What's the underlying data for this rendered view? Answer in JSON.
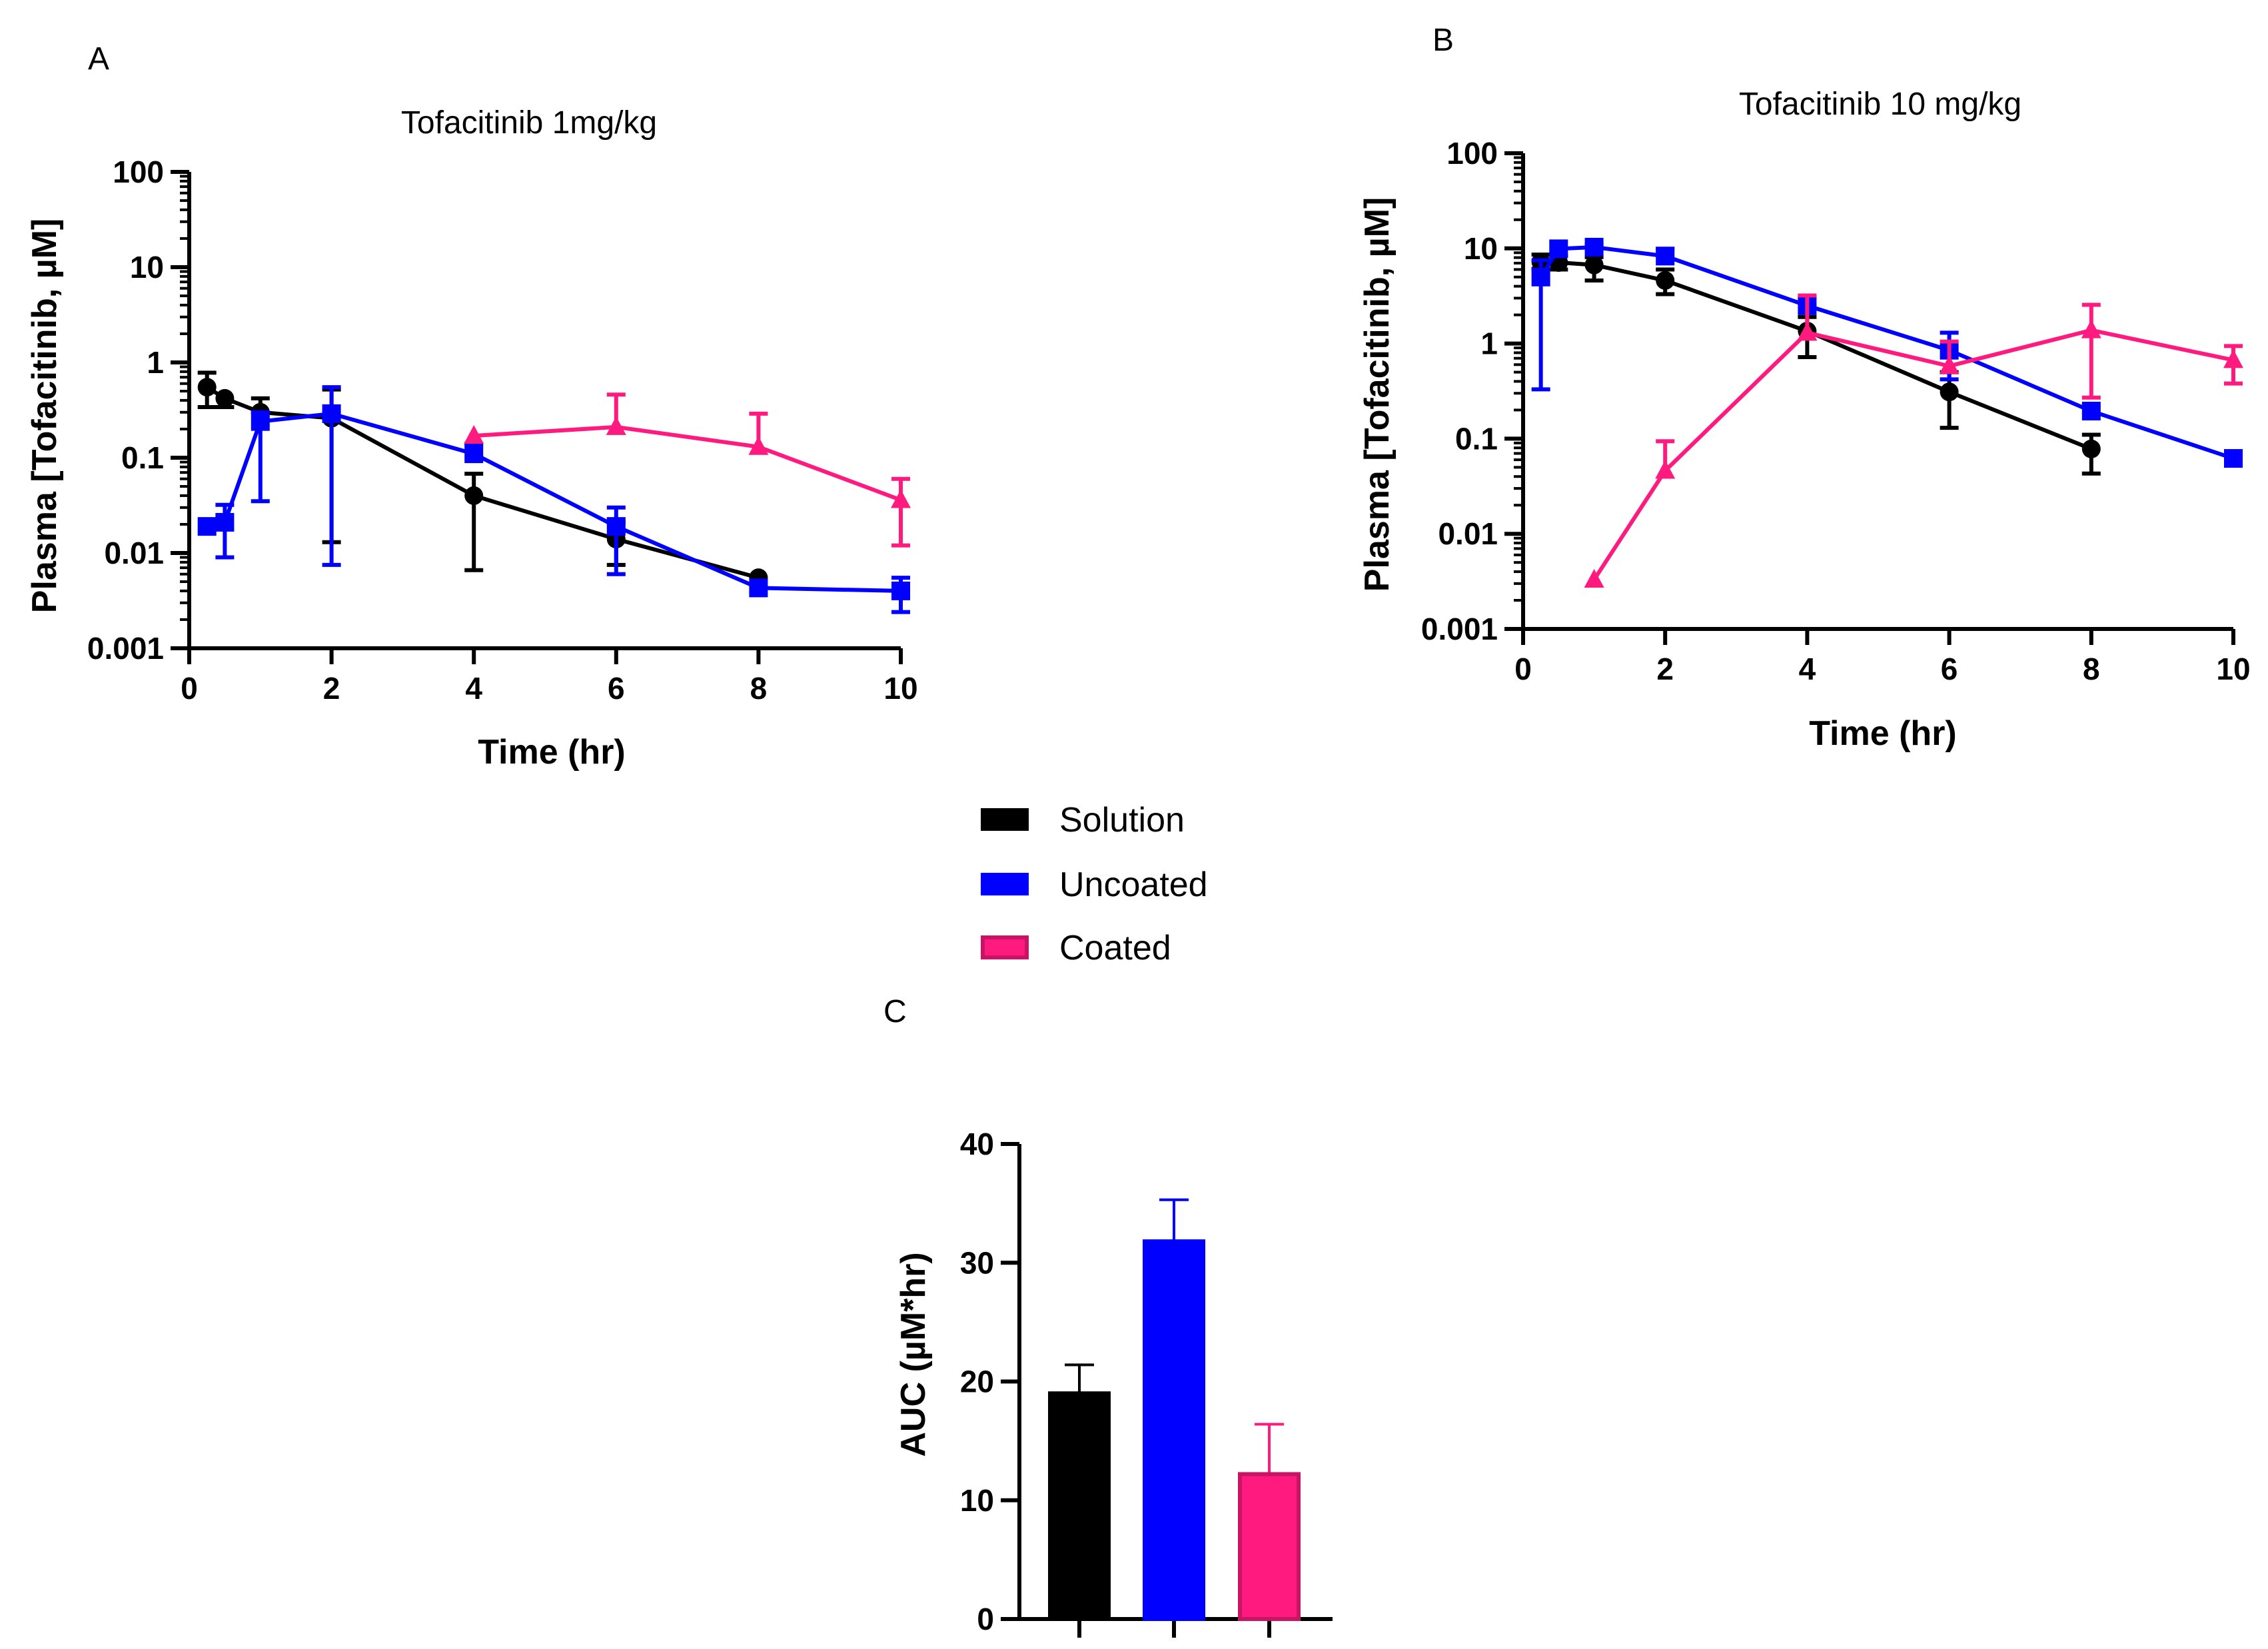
{
  "panel_labels": {
    "A": "A",
    "B": "B",
    "C": "C"
  },
  "legend": {
    "items": [
      {
        "label": "Solution",
        "color": "#000000"
      },
      {
        "label": "Uncoated",
        "color": "#0000ff"
      },
      {
        "label": "Coated",
        "color": "#ff1a7f"
      }
    ]
  },
  "chart_data": [
    {
      "id": "A",
      "type": "line",
      "scale": "log",
      "title": "Tofacitinib 1mg/kg",
      "xlabel": "Time (hr)",
      "ylabel": "Plasma [Tofacitinib, µM]",
      "xlim": [
        0,
        10
      ],
      "ylim": [
        0.001,
        100
      ],
      "xticks": [
        0,
        2,
        4,
        6,
        8,
        10
      ],
      "xtick_labels": [
        "0",
        "2",
        "4",
        "6",
        "8",
        "10"
      ],
      "yticks": [
        0.001,
        0.01,
        0.1,
        1,
        10,
        100
      ],
      "ytick_labels": [
        "0.001",
        "0.01",
        "0.1",
        "1",
        "10",
        "100"
      ],
      "series": [
        {
          "name": "Solution",
          "color": "#000000",
          "marker": "circle",
          "x": [
            0.25,
            0.5,
            1,
            2,
            4,
            6,
            8
          ],
          "y": [
            0.55,
            0.42,
            0.3,
            0.26,
            0.04,
            0.014,
            0.0055
          ],
          "err_hi": [
            0.78,
            null,
            0.42,
            0.52,
            0.068,
            0.021,
            null
          ],
          "err_lo": [
            0.34,
            0.34,
            null,
            0.013,
            0.0066,
            0.0075,
            null
          ]
        },
        {
          "name": "Uncoated",
          "color": "#0000ff",
          "marker": "square",
          "x": [
            0.25,
            0.5,
            1,
            2,
            4,
            6,
            8,
            10
          ],
          "y": [
            0.019,
            0.021,
            0.24,
            0.29,
            0.11,
            0.019,
            0.0043,
            0.004
          ],
          "err_hi": [
            null,
            0.032,
            0.3,
            0.55,
            0.14,
            0.03,
            null,
            0.0055
          ],
          "err_lo": [
            null,
            0.009,
            0.035,
            0.0075,
            null,
            0.006,
            null,
            0.0024
          ]
        },
        {
          "name": "Coated",
          "color": "#ff1a7f",
          "marker": "triangle",
          "x": [
            4,
            6,
            8,
            10
          ],
          "y": [
            0.17,
            0.21,
            0.13,
            0.036
          ],
          "err_hi": [
            null,
            0.46,
            0.29,
            0.06
          ],
          "err_lo": [
            null,
            null,
            null,
            0.012
          ]
        }
      ]
    },
    {
      "id": "B",
      "type": "line",
      "scale": "log",
      "title": "Tofacitinib 10 mg/kg",
      "xlabel": "Time (hr)",
      "ylabel": "Plasma [Tofacitinib, µM]",
      "xlim": [
        0,
        10
      ],
      "ylim": [
        0.001,
        100
      ],
      "xticks": [
        0,
        2,
        4,
        6,
        8,
        10
      ],
      "xtick_labels": [
        "0",
        "2",
        "4",
        "6",
        "8",
        "10"
      ],
      "yticks": [
        0.001,
        0.01,
        0.1,
        1,
        10,
        100
      ],
      "ytick_labels": [
        "0.001",
        "0.01",
        "0.1",
        "1",
        "10",
        "100"
      ],
      "series": [
        {
          "name": "Solution",
          "color": "#000000",
          "marker": "circle",
          "x": [
            0.25,
            0.5,
            1,
            2,
            4,
            6,
            8
          ],
          "y": [
            7.2,
            7.1,
            6.7,
            4.6,
            1.35,
            0.31,
            0.078
          ],
          "err_hi": [
            8.6,
            8.4,
            8.1,
            6.0,
            1.9,
            0.5,
            0.11
          ],
          "err_lo": [
            6.1,
            6.0,
            4.6,
            3.3,
            0.72,
            0.13,
            0.043
          ]
        },
        {
          "name": "Uncoated",
          "color": "#0000ff",
          "marker": "square",
          "x": [
            0.25,
            0.5,
            1,
            2,
            4,
            6,
            8,
            10
          ],
          "y": [
            5.0,
            9.9,
            10.3,
            8.3,
            2.5,
            0.85,
            0.195,
            0.062
          ],
          "err_hi": [
            7.5,
            null,
            11.0,
            9.9,
            3.1,
            1.3,
            null,
            null
          ],
          "err_lo": [
            0.33,
            null,
            null,
            null,
            null,
            0.42,
            null,
            null
          ]
        },
        {
          "name": "Coated",
          "color": "#ff1a7f",
          "marker": "triangle",
          "x": [
            1,
            2,
            4,
            6,
            8,
            10
          ],
          "y": [
            0.0033,
            0.046,
            1.3,
            0.58,
            1.38,
            0.67
          ],
          "err_hi": [
            null,
            0.094,
            3.2,
            1.05,
            2.55,
            0.94
          ],
          "err_lo": [
            null,
            null,
            null,
            null,
            0.27,
            0.38
          ]
        }
      ]
    },
    {
      "id": "C",
      "type": "bar",
      "title": "",
      "xlabel": "",
      "ylabel": "AUC (µM*hr)",
      "ylim": [
        0,
        40
      ],
      "yticks": [
        0,
        10,
        20,
        30,
        40
      ],
      "ytick_labels": [
        "0",
        "10",
        "20",
        "30",
        "40"
      ],
      "categories": [
        "Solution",
        "Uncoated",
        "Coated"
      ],
      "values": [
        19.0,
        31.8,
        12.2
      ],
      "errors": [
        2.4,
        3.5,
        4.2
      ],
      "colors": [
        "#000000",
        "#0000ff",
        "#ff1a7f"
      ]
    }
  ]
}
